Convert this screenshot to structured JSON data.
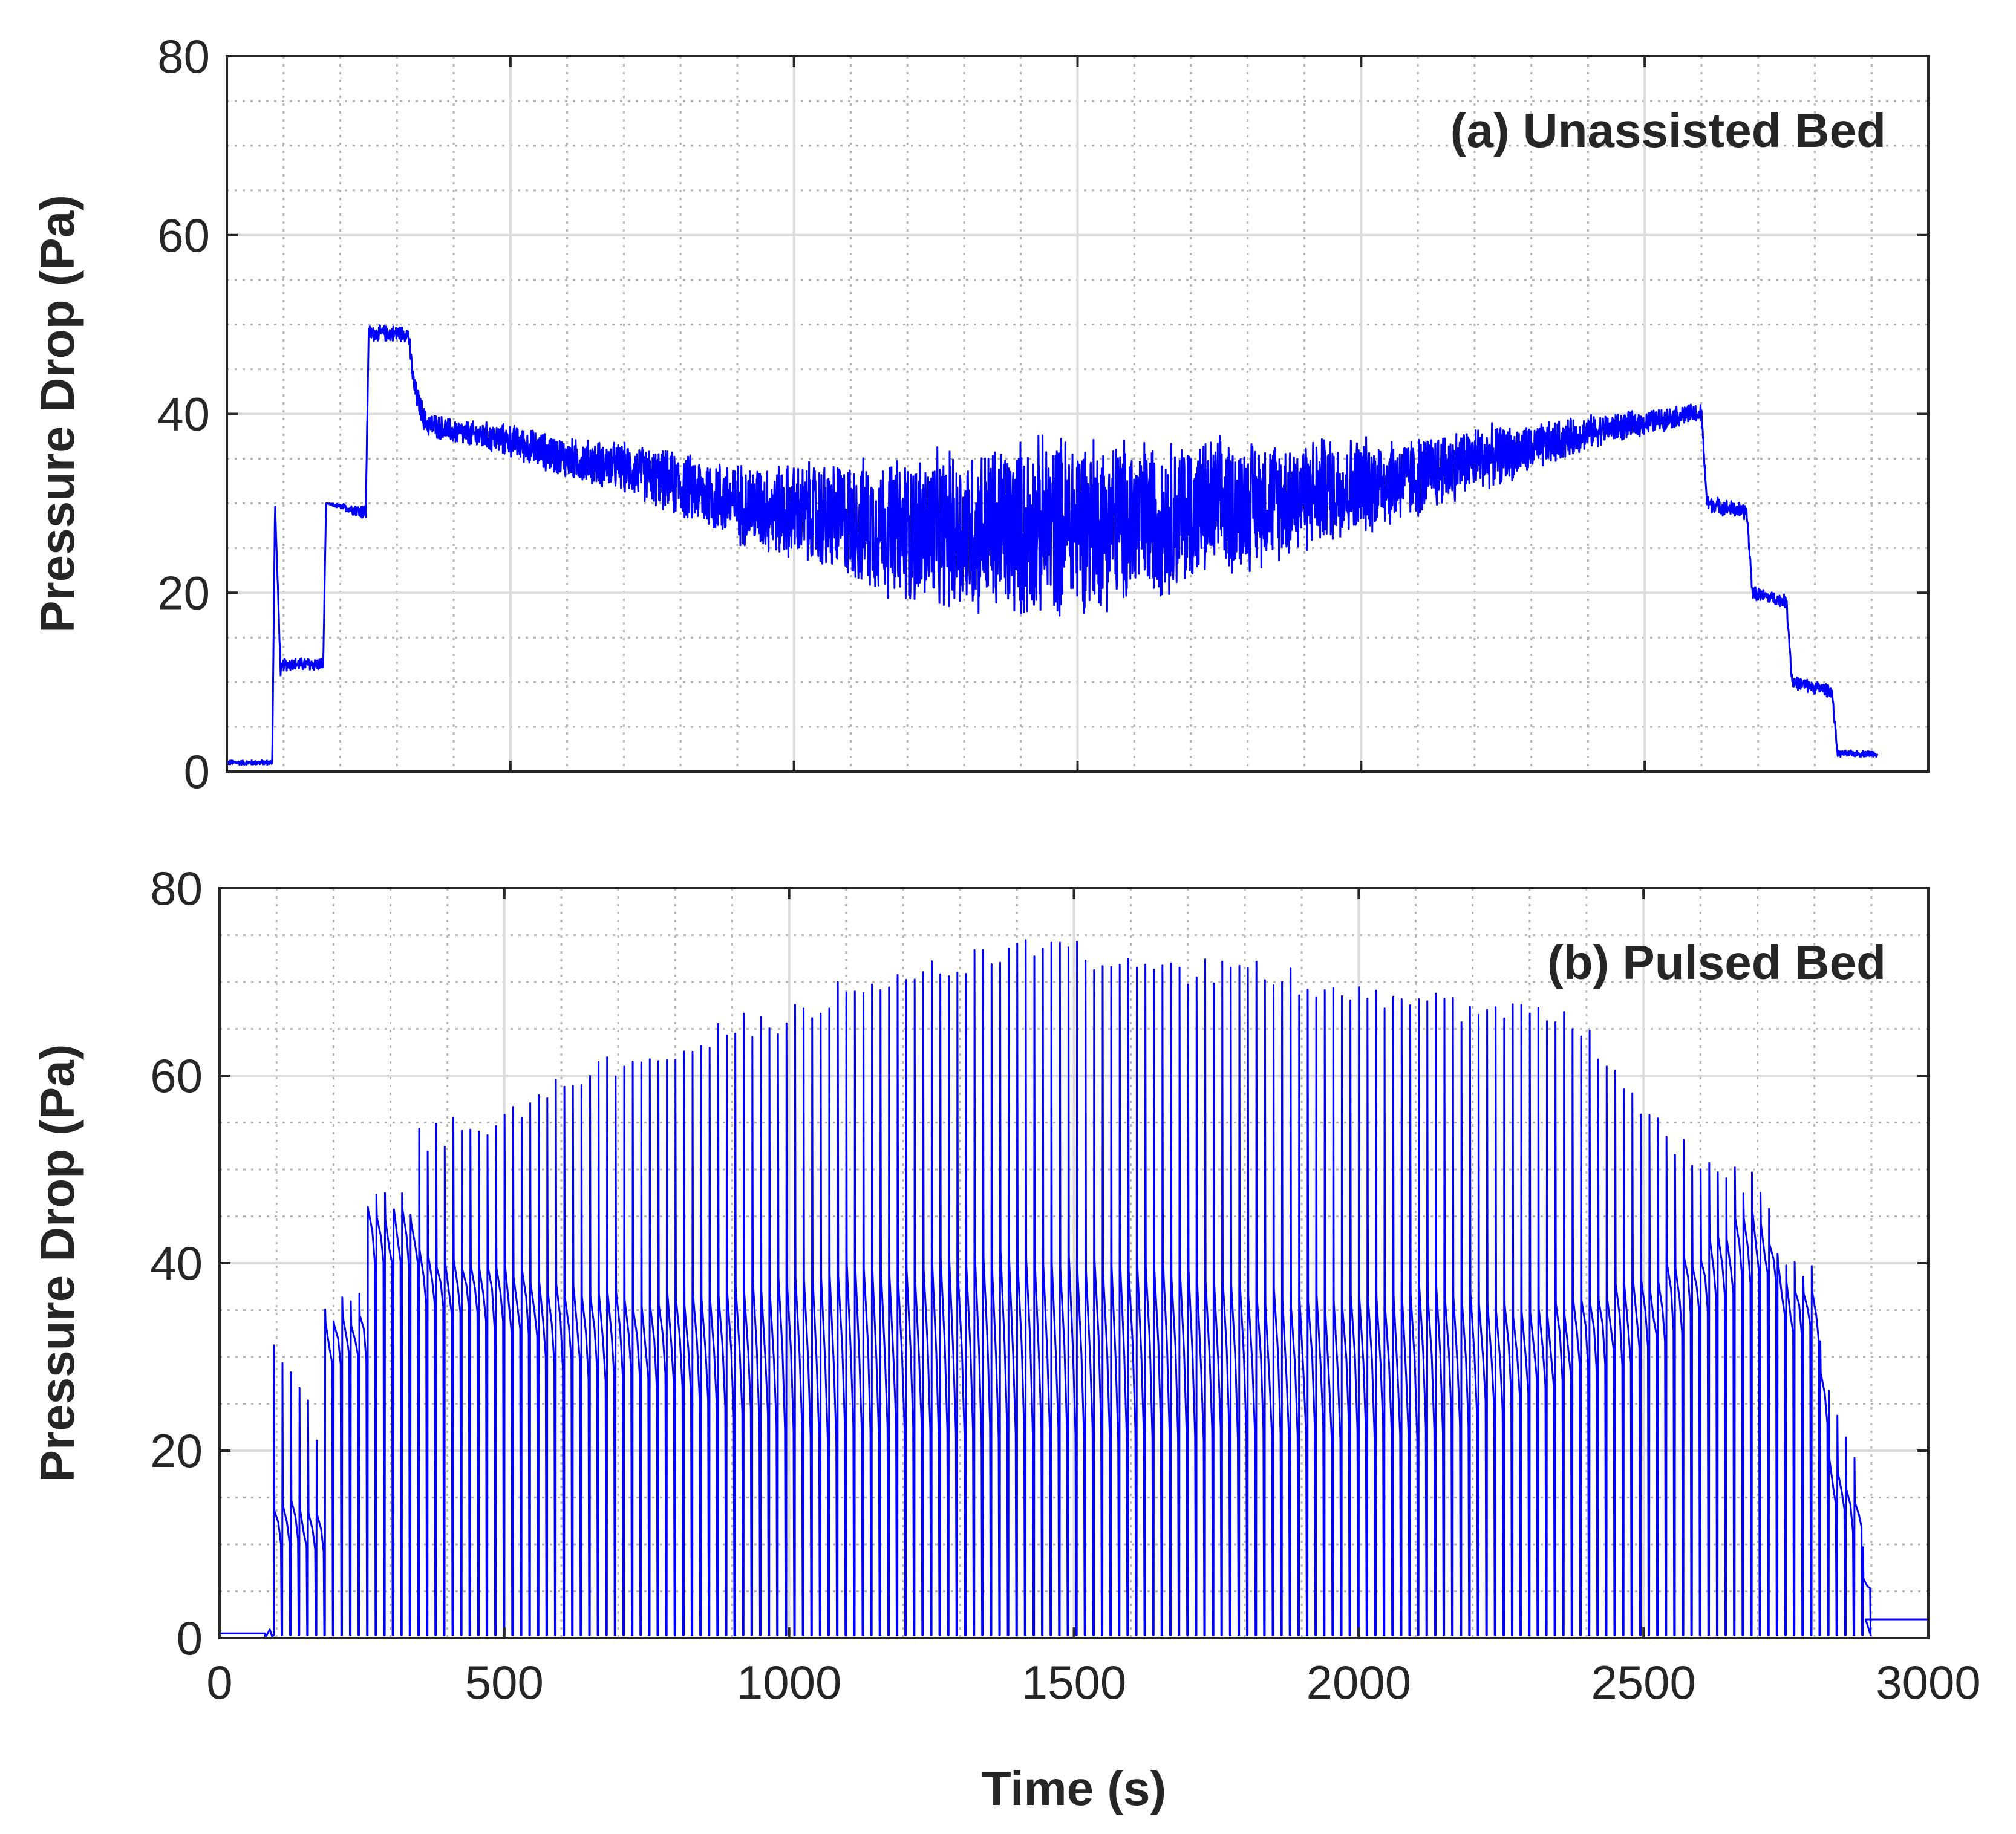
{
  "colors": {
    "series": "#0000ff",
    "grid": "#dcdcdc",
    "minor_grid": "#b5b5b5",
    "axes": "#262626",
    "background": "#ffffff"
  },
  "chart_data": [
    {
      "type": "line",
      "panel_label": "(a) Unassisted Bed",
      "xlabel": "",
      "ylabel": "Pressure Drop (Pa)",
      "xlim": [
        0,
        3000
      ],
      "ylim": [
        0,
        80
      ],
      "x_ticks": [
        0,
        500,
        1000,
        1500,
        2000,
        2500,
        3000
      ],
      "y_ticks": [
        "0",
        "20",
        "40",
        "60",
        "80"
      ],
      "grid": true,
      "minor_grid": true,
      "x_tick_labels_visible": false,
      "series": [
        {
          "name": "Pressure Drop",
          "color": "#0000ff",
          "x": [
            0,
            80,
            85,
            95,
            100,
            170,
            175,
            245,
            250,
            320,
            330,
            350,
            400,
            500,
            600,
            700,
            800,
            900,
            1000,
            1100,
            1200,
            1300,
            1400,
            1500,
            1600,
            1700,
            1800,
            1900,
            2000,
            2100,
            2200,
            2300,
            2400,
            2500,
            2580,
            2600,
            2610,
            2680,
            2690,
            2750,
            2760,
            2830,
            2840,
            2910
          ],
          "y": [
            1,
            1,
            30,
            11,
            12,
            12,
            30,
            29,
            49,
            49,
            43,
            39,
            38,
            37,
            35,
            34,
            32,
            30,
            29,
            28,
            27,
            27,
            27,
            28,
            28,
            29,
            30,
            31,
            32,
            33,
            35,
            36,
            38,
            39,
            40,
            40,
            30,
            29,
            20,
            19,
            10,
            9,
            2,
            2
          ],
          "amp": [
            0.3,
            0.3,
            0,
            0.8,
            0.8,
            0.8,
            0,
            1,
            1,
            1,
            1.5,
            1.5,
            1.5,
            2,
            2.5,
            3,
            4,
            5,
            6,
            7.5,
            9,
            10,
            11,
            11,
            10,
            9,
            8,
            7,
            6,
            5,
            4,
            3,
            2,
            1.5,
            1.2,
            1.2,
            1,
            1,
            0.8,
            0.8,
            0.8,
            0.8,
            0.4,
            0.4
          ]
        }
      ]
    },
    {
      "type": "line",
      "panel_label": "(b) Pulsed Bed",
      "xlabel": "Time (s)",
      "ylabel": "Pressure Drop (Pa)",
      "xlim": [
        0,
        3000
      ],
      "ylim": [
        0,
        80
      ],
      "x_ticks": [
        0,
        500,
        1000,
        1500,
        2000,
        2500,
        3000
      ],
      "x_tick_labels": [
        "0",
        "500",
        "1000",
        "1500",
        "2000",
        "2500",
        "3000"
      ],
      "y_ticks": [
        "0",
        "20",
        "40",
        "60",
        "80"
      ],
      "grid": true,
      "minor_grid": true,
      "x_tick_labels_visible": true,
      "series": [
        {
          "name": "Pressure Drop",
          "color": "#0000ff",
          "pulse_period": 15,
          "x": [
            80,
            90,
            170,
            180,
            250,
            260,
            340,
            350,
            400,
            500,
            600,
            700,
            800,
            900,
            1000,
            1100,
            1200,
            1300,
            1400,
            1500,
            1600,
            1700,
            1800,
            1900,
            2000,
            2100,
            2200,
            2300,
            2400,
            2500,
            2600,
            2700,
            2750,
            2800,
            2820,
            2880,
            2890
          ],
          "peak": [
            0,
            32,
            22,
            34,
            36,
            46,
            46,
            53,
            54,
            55,
            59,
            61,
            63,
            65,
            66,
            69,
            71,
            72,
            73,
            73,
            71,
            71,
            71,
            70,
            69,
            68,
            67,
            66,
            65,
            56,
            50,
            48,
            40,
            38,
            26,
            19,
            0
          ],
          "plateau": [
            0,
            14,
            14,
            34,
            34,
            45,
            45,
            41,
            40,
            39,
            37,
            36,
            36,
            37,
            38,
            39,
            39,
            40,
            41,
            40,
            40,
            39,
            37,
            36,
            36,
            37,
            36,
            34,
            36,
            38,
            41,
            46,
            38,
            37,
            20,
            14,
            0
          ],
          "trough": [
            0,
            10,
            10,
            30,
            30,
            40,
            40,
            36,
            35,
            33,
            29,
            28,
            27,
            24,
            22,
            22,
            22,
            22,
            22,
            22,
            22,
            22,
            22,
            22,
            22,
            22,
            24,
            27,
            29,
            31,
            35,
            40,
            33,
            32,
            14,
            11,
            0
          ],
          "baseline_before": {
            "x": [
              0,
              80
            ],
            "y": 0.5
          },
          "baseline_after": {
            "x": [
              2890,
              3000
            ],
            "y": 2
          }
        }
      ]
    }
  ]
}
